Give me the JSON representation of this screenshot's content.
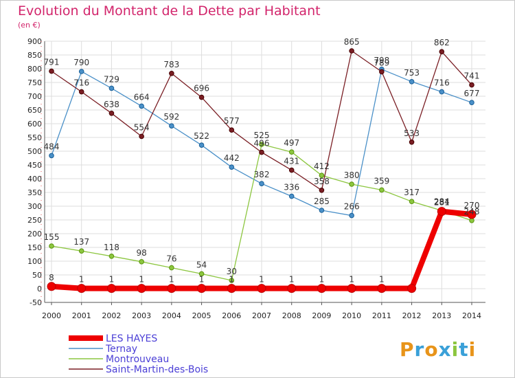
{
  "brand": {
    "logo_text": "Proxiti",
    "letter_colors": [
      "#e8941a",
      "#3aa0d8",
      "#e8941a",
      "#3aa0d8",
      "#8cc63f",
      "#3aa0d8",
      "#e8941a"
    ]
  },
  "colors": {
    "background": "#ffffff",
    "plot_background": "#ffffff",
    "grid": "#dddddd",
    "axis": "#555555",
    "title": "#d2246b"
  },
  "chart_data": {
    "type": "line",
    "title": "Evolution du Montant de la Dette par Habitant",
    "subtitle": "(en €)",
    "xlabel": "",
    "ylabel": "",
    "ylim": [
      -50,
      900
    ],
    "y_ticks": [
      -50,
      0,
      50,
      100,
      150,
      200,
      250,
      300,
      350,
      400,
      450,
      500,
      550,
      600,
      650,
      700,
      750,
      800,
      850,
      900
    ],
    "grid": true,
    "legend_position": "bottom-left",
    "x": [
      "2000",
      "2001",
      "2002",
      "2003",
      "2004",
      "2005",
      "2006",
      "2007",
      "2008",
      "2009",
      "2010",
      "2011",
      "2012",
      "2013",
      "2014"
    ],
    "series": [
      {
        "name": "Ternay",
        "color": "#4a90c8",
        "values": [
          484,
          790,
          729,
          664,
          592,
          522,
          442,
          382,
          336,
          285,
          266,
          798,
          753,
          716,
          677
        ],
        "labels": [
          "484",
          "790",
          "729",
          "664",
          "592",
          "522",
          "442",
          "382",
          "336",
          "285",
          "266",
          "798",
          "753",
          "716",
          "677"
        ]
      },
      {
        "name": "Montrouveau",
        "color": "#8cc63f",
        "values": [
          155,
          137,
          118,
          98,
          76,
          54,
          30,
          525,
          497,
          412,
          380,
          359,
          317,
          284,
          248
        ],
        "labels": [
          "155",
          "137",
          "118",
          "98",
          "76",
          "54",
          "30",
          "525",
          "497",
          "412",
          "380",
          "359",
          "317",
          "284",
          "248"
        ]
      },
      {
        "name": "Saint-Martin-des-Bois",
        "color": "#7a1e24",
        "values": [
          791,
          716,
          638,
          554,
          783,
          696,
          577,
          496,
          431,
          358,
          865,
          789,
          533,
          862,
          741
        ],
        "labels": [
          "791",
          "716",
          "638",
          "554",
          "783",
          "696",
          "577",
          "496",
          "431",
          "358",
          "865",
          "789",
          "533",
          "862",
          "741"
        ]
      },
      {
        "name": "LES HAYES",
        "color": "#ee0000",
        "values": [
          8,
          1,
          1,
          1,
          1,
          1,
          1,
          1,
          1,
          1,
          1,
          1,
          1,
          281,
          270
        ],
        "labels": [
          "8",
          "1",
          "1",
          "1",
          "1",
          "1",
          "1",
          "1",
          "1",
          "1",
          "1",
          "1",
          "",
          "281",
          "270"
        ]
      }
    ],
    "legend": [
      "LES HAYES",
      "Ternay",
      "Montrouveau",
      "Saint-Martin-des-Bois"
    ]
  }
}
